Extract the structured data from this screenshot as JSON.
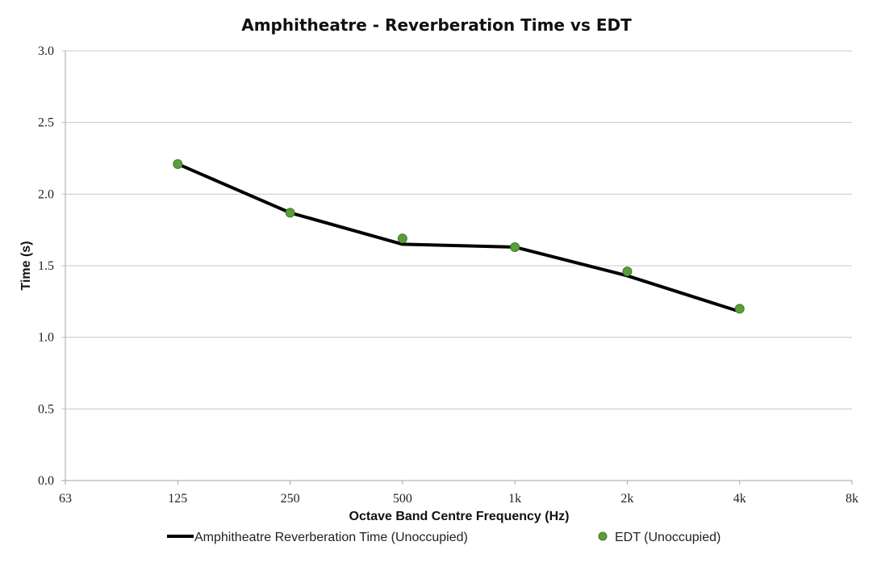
{
  "chart_data": {
    "type": "line",
    "title": "Amphitheatre - Reverberation Time vs EDT",
    "xlabel": "Octave Band Centre Frequency (Hz)",
    "ylabel": "Time (s)",
    "categories": [
      "63",
      "125",
      "250",
      "500",
      "1k",
      "2k",
      "4k",
      "8k"
    ],
    "ylim": [
      0,
      3.0
    ],
    "yticks": [
      "0.0",
      "0.5",
      "1.0",
      "1.5",
      "2.0",
      "2.5",
      "3.0"
    ],
    "grid": true,
    "legend_position": "bottom",
    "series": [
      {
        "name": "Amphitheatre Reverberation Time (Unoccupied)",
        "kind": "line",
        "color": "#000000",
        "values": [
          null,
          2.21,
          1.87,
          1.65,
          1.63,
          1.43,
          1.18,
          null
        ]
      },
      {
        "name": "EDT (Unoccupied)",
        "kind": "markers",
        "color": "#5a9e3a",
        "edge_color": "#3f7a28",
        "values": [
          null,
          2.21,
          1.87,
          1.69,
          1.63,
          1.46,
          1.2,
          null
        ]
      }
    ]
  }
}
